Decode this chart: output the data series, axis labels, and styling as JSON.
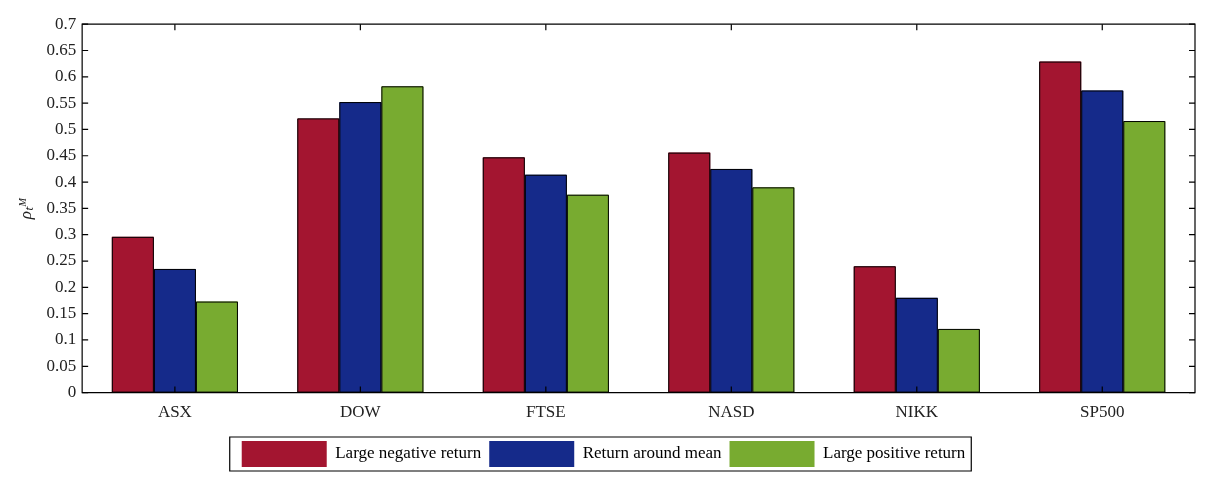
{
  "chart_data": {
    "type": "bar",
    "ylabel": "ρₜᴹ",
    "categories": [
      "ASX",
      "DOW",
      "FTSE",
      "NASD",
      "NIKK",
      "SP500"
    ],
    "series": [
      {
        "name": "Large negative return",
        "color": "#a31530",
        "values": [
          0.296,
          0.521,
          0.447,
          0.456,
          0.24,
          0.629
        ]
      },
      {
        "name": "Return around mean",
        "color": "#152a8a",
        "values": [
          0.235,
          0.552,
          0.414,
          0.425,
          0.18,
          0.574
        ]
      },
      {
        "name": "Large positive return",
        "color": "#78ab30",
        "values": [
          0.173,
          0.582,
          0.376,
          0.39,
          0.121,
          0.516
        ]
      }
    ],
    "ylim": [
      0,
      0.7
    ],
    "yticks": [
      0,
      0.05,
      0.1,
      0.15,
      0.2,
      0.25,
      0.3,
      0.35,
      0.4,
      0.45,
      0.5,
      0.55,
      0.6,
      0.65,
      0.7
    ],
    "grid": false,
    "legend": "bottom"
  }
}
